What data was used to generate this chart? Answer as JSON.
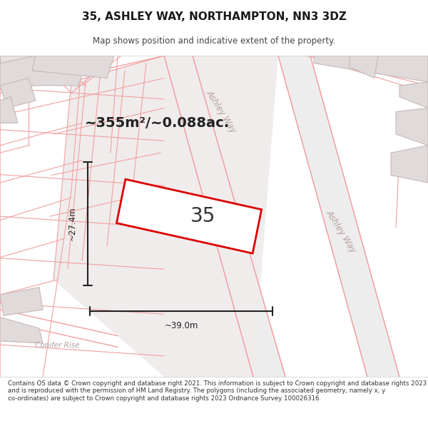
{
  "title_line1": "35, ASHLEY WAY, NORTHAMPTON, NN3 3DZ",
  "title_line2": "Map shows position and indicative extent of the property.",
  "bg_color": "#ffffff",
  "map_bg_color": "#f8f6f6",
  "footer_text": "Contains OS data © Crown copyright and database right 2021. This information is subject to Crown copyright and database rights 2023 and is reproduced with the permission of HM Land Registry. The polygons (including the associated geometry, namely x, y co-ordinates) are subject to Crown copyright and database rights 2023 Ordnance Survey 100026316.",
  "area_text": "~355m²/~0.088ac.",
  "property_number": "35",
  "dim_width": "~39.0m",
  "dim_height": "~27.4m",
  "road_line_color": "#f0a0a0",
  "block_fill": "#e0dada",
  "block_edge": "#c8b8b8",
  "property_outline_color": "#dd0000",
  "street_label_color": "#b8a0a0",
  "title_fontsize": 11,
  "subtitle_fontsize": 8.5,
  "area_fontsize": 14,
  "number_fontsize": 20
}
